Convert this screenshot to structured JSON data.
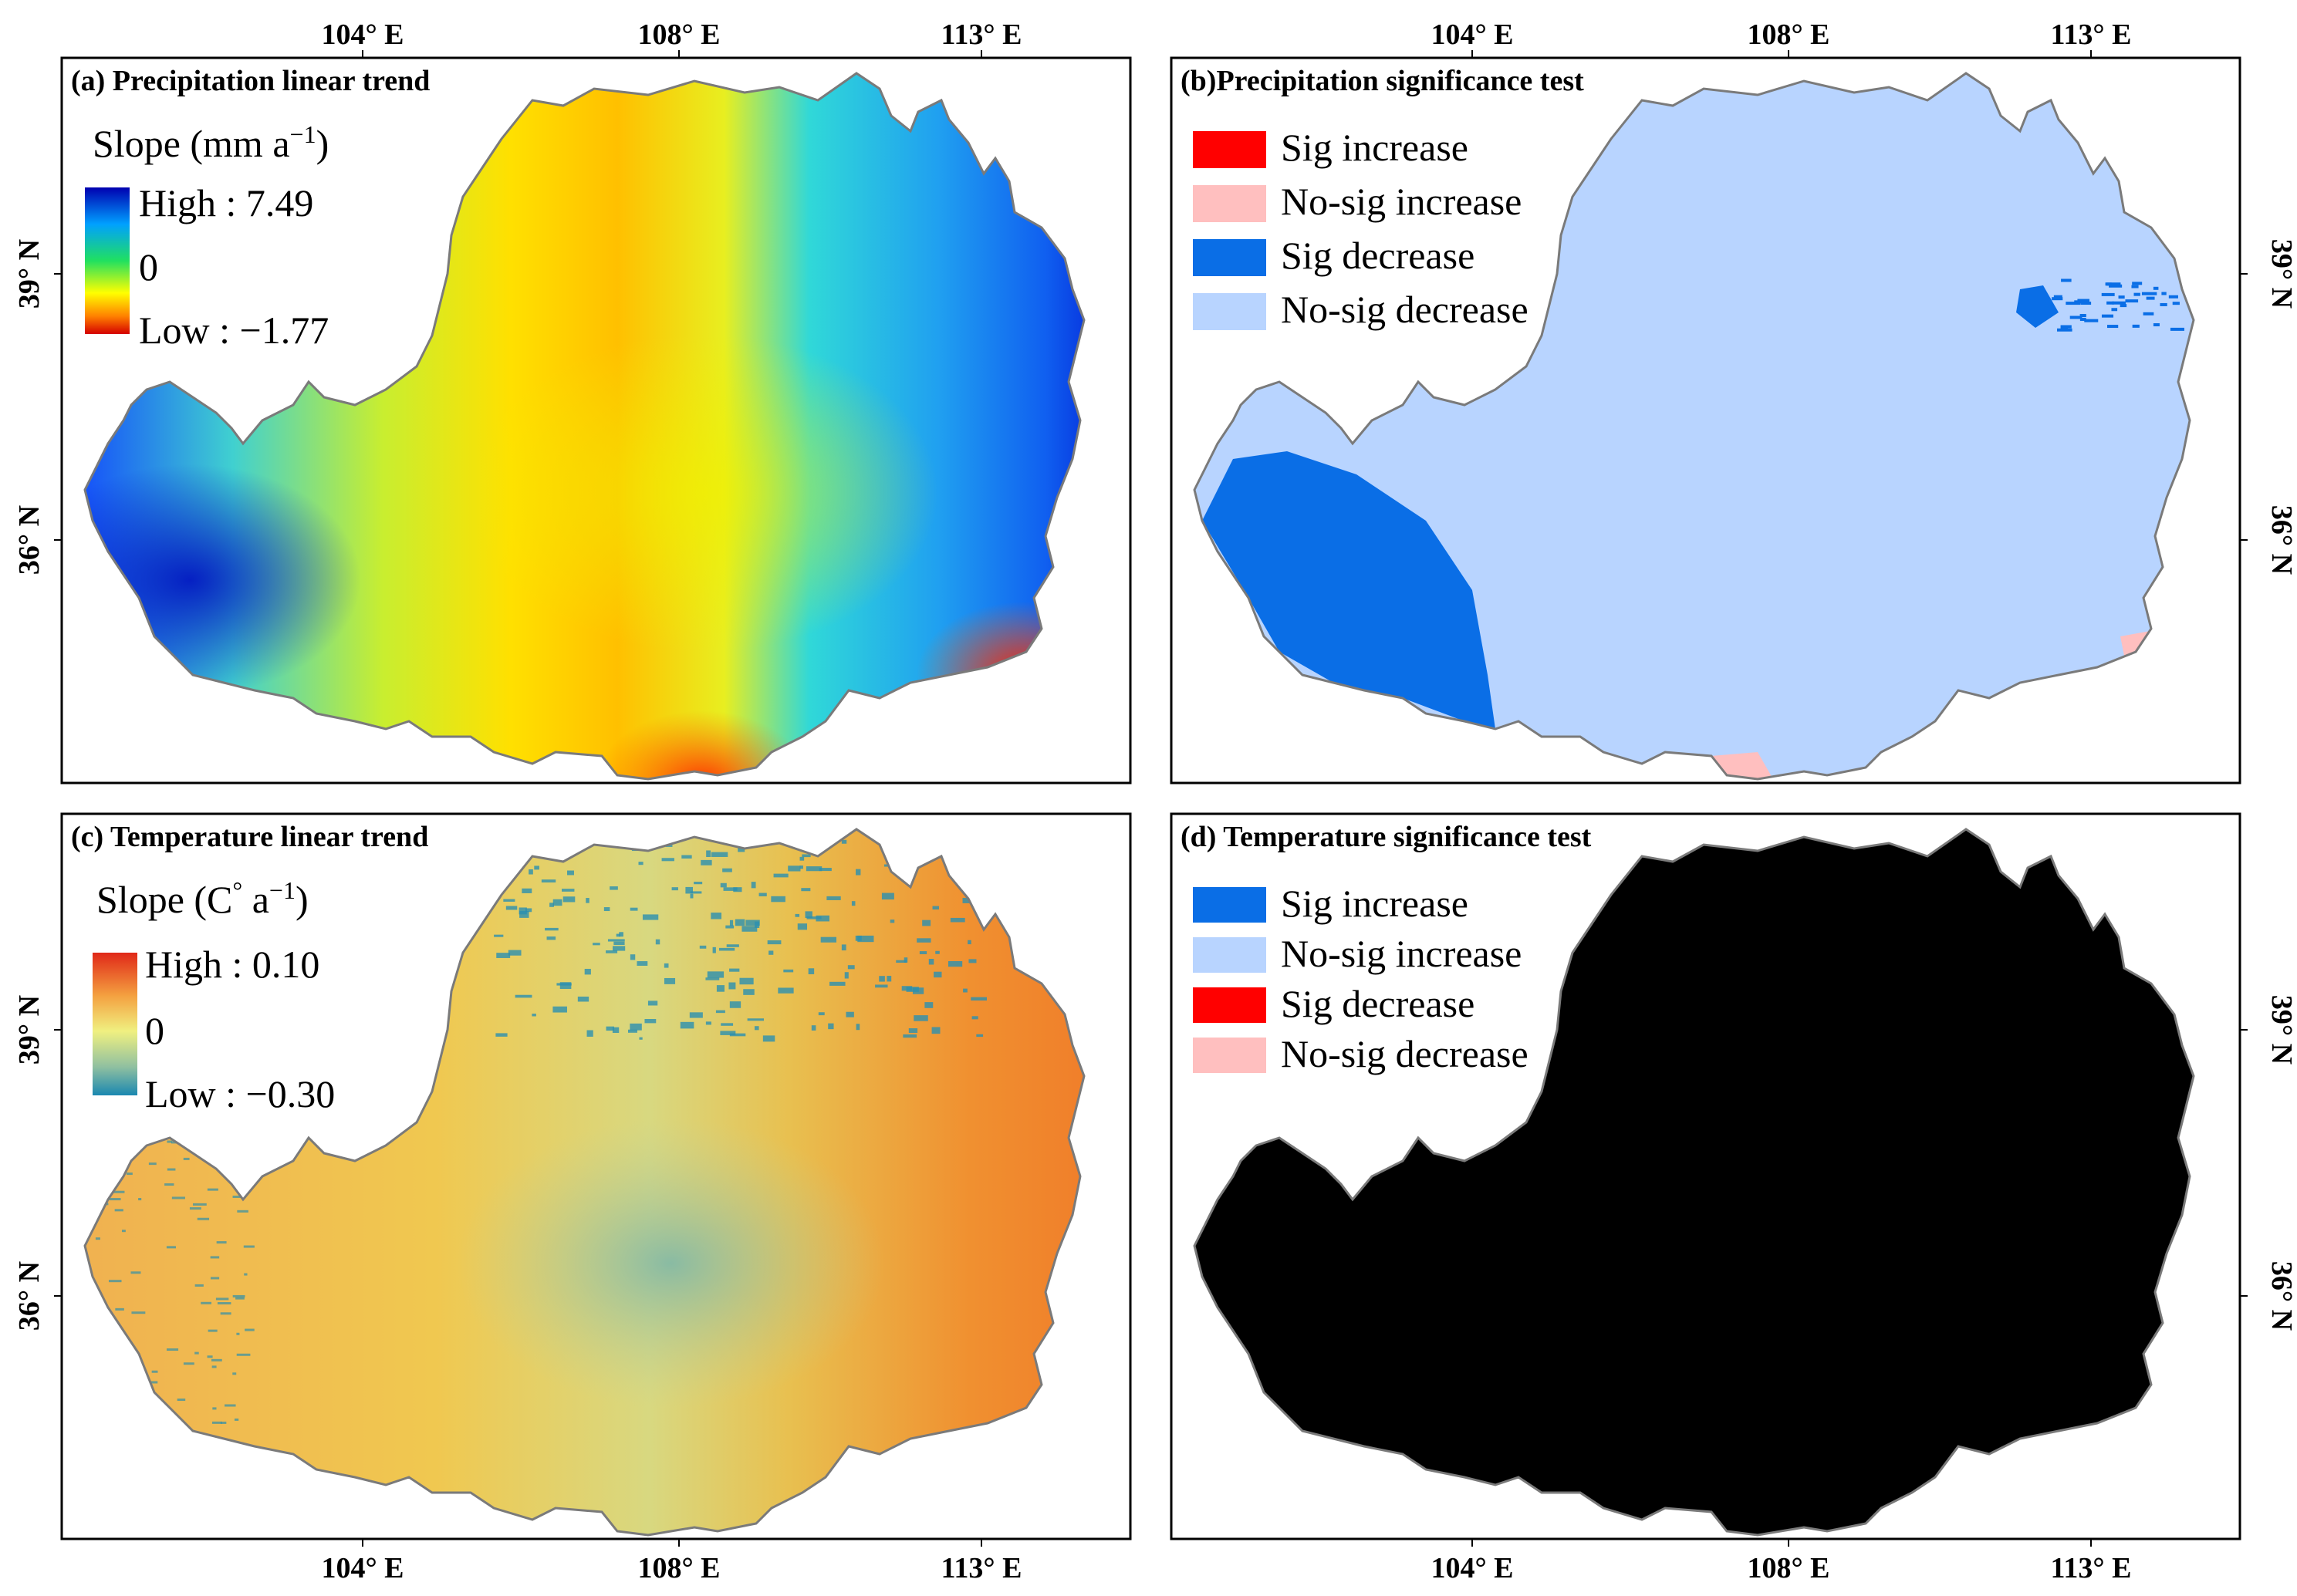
{
  "colors": {
    "frame": "#000000",
    "boundary": "#7a7a7a",
    "precip_ramp": [
      "#d40000",
      "#ff7a00",
      "#ffff00",
      "#20e060",
      "#00c0ff",
      "#1040ff",
      "#0000b0"
    ],
    "temp_ramp": [
      "#1f8fb0",
      "#a0c8a0",
      "#f0f080",
      "#f4a040",
      "#e03018"
    ],
    "sig_increase_red": "#ff0000",
    "nosig_increase_pink": "#ffbfbf",
    "sig_decrease_blue": "#0a6ee6",
    "nosig_decrease_lightblue": "#b8d4ff"
  },
  "axes": {
    "lon_top": [
      "104° E",
      "108° E",
      "113° E"
    ],
    "lon_bottom": [
      "104° E",
      "108° E",
      "113° E"
    ],
    "lat_left": [
      "39° N",
      "36° N"
    ],
    "lat_right": [
      "39° N",
      "36° N"
    ]
  },
  "panels": {
    "a": {
      "title": "(a) Precipitation linear trend",
      "legend_title": "Slope (mm a",
      "legend_title_sup": "−1",
      "legend_title_end": ")",
      "high": "High : 7.49",
      "mid": "0",
      "low": "Low : −1.77"
    },
    "b": {
      "title": "(b)Precipitation significance test",
      "items": [
        "Sig increase",
        "No-sig increase",
        "Sig decrease",
        "No-sig decrease"
      ],
      "item_colors": [
        "#ff0000",
        "#ffbfbf",
        "#0a6ee6",
        "#b8d4ff"
      ]
    },
    "c": {
      "title": "(c) Temperature linear trend",
      "legend_title": "Slope (C",
      "legend_title_sup": "°",
      "legend_title_end": "  a",
      "legend_title_sup2": "−1",
      "legend_title_end2": ")",
      "high": "High : 0.10",
      "mid": "0",
      "low": "Low : −0.30"
    },
    "d": {
      "title": "(d) Temperature significance test",
      "items": [
        "Sig increase",
        "No-sig increase",
        "Sig decrease",
        "No-sig decrease"
      ],
      "item_colors": [
        "#0a6ee6",
        "#b8d4ff",
        "#ff0000",
        "#ffbfbf"
      ]
    }
  }
}
